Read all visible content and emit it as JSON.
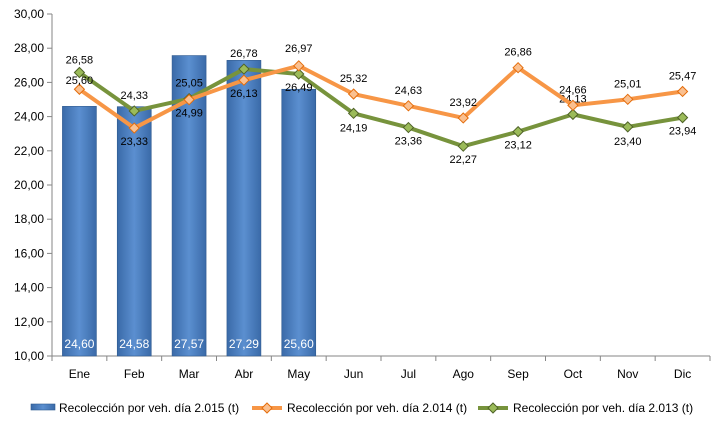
{
  "chart_data": {
    "type": "bar",
    "categories": [
      "Ene",
      "Feb",
      "Mar",
      "Abr",
      "May",
      "Jun",
      "Jul",
      "Ago",
      "Sep",
      "Oct",
      "Nov",
      "Dic"
    ],
    "ylim": [
      10,
      30
    ],
    "yticks": [
      "10,00",
      "12,00",
      "14,00",
      "16,00",
      "18,00",
      "20,00",
      "22,00",
      "24,00",
      "26,00",
      "28,00",
      "30,00"
    ],
    "grid": false,
    "legend_position": "bottom",
    "series": [
      {
        "name": "Recolección por veh. día 2.015 (t)",
        "kind": "bar",
        "color": "#4f81bd",
        "values": [
          24.6,
          24.58,
          27.57,
          27.29,
          25.6,
          null,
          null,
          null,
          null,
          null,
          null,
          null
        ],
        "labels": [
          "24,60",
          "24,58",
          "27,57",
          "27,29",
          "25,60",
          "",
          "",
          "",
          "",
          "",
          "",
          ""
        ]
      },
      {
        "name": "Recolección por veh. día 2.014 (t)",
        "kind": "line",
        "color": "#f79646",
        "values": [
          25.6,
          23.33,
          24.99,
          26.13,
          26.97,
          25.32,
          24.63,
          23.92,
          26.86,
          24.66,
          25.01,
          25.47
        ],
        "labels": [
          "25,60",
          "23,33",
          "24,99",
          "26,13",
          "26,97",
          "25,32",
          "24,63",
          "23,92",
          "26,86",
          "24,66",
          "25,01",
          "25,47"
        ]
      },
      {
        "name": "Recolección por veh. día 2.013 (t)",
        "kind": "line",
        "color": "#77933c",
        "values": [
          26.58,
          24.33,
          25.05,
          26.78,
          26.49,
          24.19,
          23.36,
          22.27,
          23.12,
          24.13,
          23.4,
          23.94
        ],
        "labels": [
          "26,58",
          "24,33",
          "25,05",
          "26,78",
          "26,49",
          "24,19",
          "23,36",
          "22,27",
          "23,12",
          "24,13",
          "23,40",
          "23,94"
        ]
      }
    ]
  }
}
